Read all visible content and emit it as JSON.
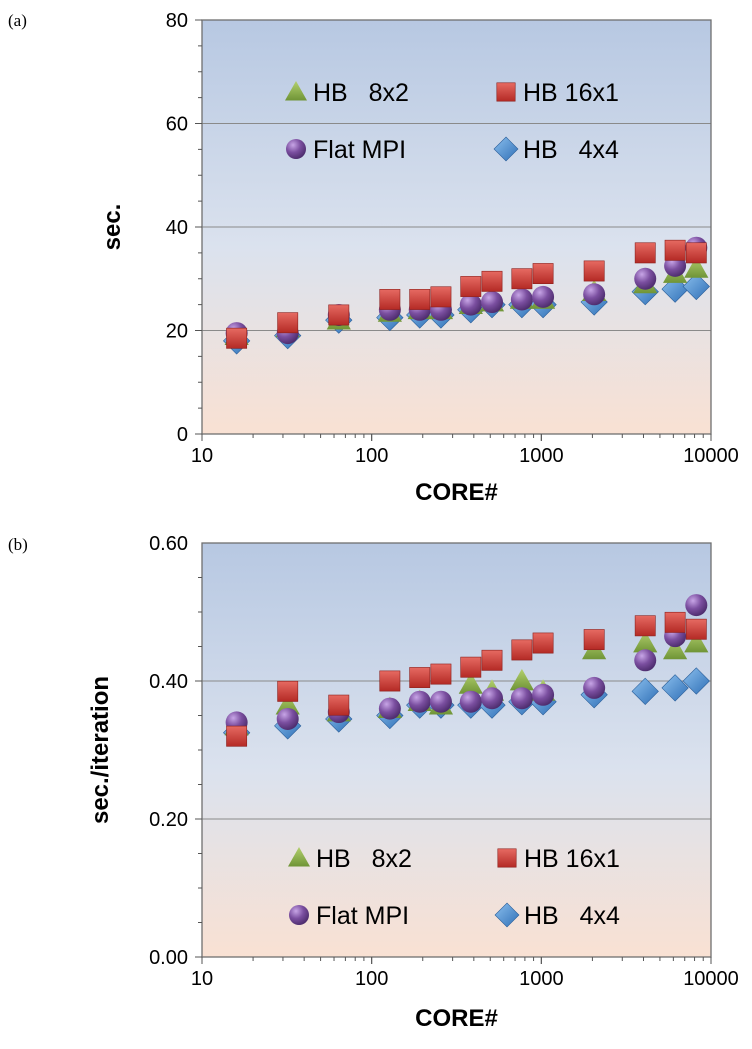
{
  "chart_data": [
    {
      "panel_label": "(a)",
      "type": "scatter",
      "xlabel": "CORE#",
      "ylabel": "sec.",
      "xscale": "log",
      "xlim": [
        10,
        10000
      ],
      "ylim": [
        0,
        80
      ],
      "xticks": [
        10,
        100,
        1000,
        10000
      ],
      "xtick_labels": [
        "10",
        "100",
        "1000",
        "10000"
      ],
      "yticks": [
        0,
        20,
        40,
        60,
        80
      ],
      "ytick_labels": [
        "0",
        "20",
        "40",
        "60",
        "80"
      ],
      "grid": "horizontal",
      "legend_position": "top",
      "series": [
        {
          "name": "HB   8x2",
          "marker": "triangle",
          "color": "#8db04a",
          "x": [
            16,
            32,
            64,
            128,
            192,
            256,
            384,
            512,
            768,
            1024,
            2048,
            4096,
            6144,
            8192
          ],
          "y": [
            19,
            20.5,
            22,
            23.5,
            24,
            24,
            25,
            25.5,
            26,
            26,
            27.5,
            29,
            31,
            32
          ]
        },
        {
          "name": "HB 16x1",
          "marker": "square",
          "color": "#d03a34",
          "x": [
            16,
            32,
            64,
            128,
            192,
            256,
            384,
            512,
            768,
            1024,
            2048,
            4096,
            6144,
            8192
          ],
          "y": [
            18.5,
            21.5,
            23,
            26,
            26,
            26.5,
            28.5,
            29.5,
            30,
            31,
            31.5,
            35,
            35.5,
            35
          ]
        },
        {
          "name": "Flat MPI",
          "marker": "circle",
          "color": "#7a4f9e",
          "x": [
            16,
            32,
            64,
            128,
            192,
            256,
            384,
            512,
            768,
            1024,
            2048,
            4096,
            6144,
            8192
          ],
          "y": [
            19.5,
            19.5,
            23,
            24,
            24,
            24,
            25,
            25.5,
            26,
            26.5,
            27,
            30,
            32.5,
            36
          ]
        },
        {
          "name": "HB   4x4",
          "marker": "diamond",
          "color": "#3f86cc",
          "x": [
            16,
            32,
            64,
            128,
            192,
            256,
            384,
            512,
            768,
            1024,
            2048,
            4096,
            6144,
            8192
          ],
          "y": [
            18,
            19,
            22,
            22.5,
            23,
            23,
            24,
            25,
            25,
            25,
            25.5,
            27.5,
            28,
            28.5
          ]
        }
      ]
    },
    {
      "panel_label": "(b)",
      "type": "scatter",
      "xlabel": "CORE#",
      "ylabel": "sec./iteration",
      "xscale": "log",
      "xlim": [
        10,
        10000
      ],
      "ylim": [
        0,
        0.6
      ],
      "xticks": [
        10,
        100,
        1000,
        10000
      ],
      "xtick_labels": [
        "10",
        "100",
        "1000",
        "10000"
      ],
      "yticks": [
        0,
        0.2,
        0.4,
        0.6
      ],
      "ytick_labels": [
        "0.00",
        "0.20",
        "0.40",
        "0.60"
      ],
      "grid": "horizontal",
      "legend_position": "bottom",
      "series": [
        {
          "name": "HB   8x2",
          "marker": "triangle",
          "color": "#8db04a",
          "x": [
            16,
            32,
            64,
            128,
            192,
            256,
            384,
            512,
            768,
            1024,
            2048,
            4096,
            6144,
            8192
          ],
          "y": [
            0.335,
            0.365,
            0.355,
            0.36,
            0.37,
            0.365,
            0.395,
            0.385,
            0.4,
            0.385,
            0.445,
            0.455,
            0.445,
            0.455
          ]
        },
        {
          "name": "HB 16x1",
          "marker": "square",
          "color": "#d03a34",
          "x": [
            16,
            32,
            64,
            128,
            192,
            256,
            384,
            512,
            768,
            1024,
            2048,
            4096,
            6144,
            8192
          ],
          "y": [
            0.32,
            0.385,
            0.365,
            0.4,
            0.405,
            0.41,
            0.42,
            0.43,
            0.445,
            0.455,
            0.46,
            0.48,
            0.485,
            0.475
          ]
        },
        {
          "name": "Flat MPI",
          "marker": "circle",
          "color": "#7a4f9e",
          "x": [
            16,
            32,
            64,
            128,
            192,
            256,
            384,
            512,
            768,
            1024,
            2048,
            4096,
            6144,
            8192
          ],
          "y": [
            0.34,
            0.345,
            0.355,
            0.36,
            0.37,
            0.37,
            0.37,
            0.375,
            0.375,
            0.38,
            0.39,
            0.43,
            0.465,
            0.51
          ]
        },
        {
          "name": "HB   4x4",
          "marker": "diamond",
          "color": "#3f86cc",
          "x": [
            16,
            32,
            64,
            128,
            192,
            256,
            384,
            512,
            768,
            1024,
            2048,
            4096,
            6144,
            8192
          ],
          "y": [
            0.325,
            0.335,
            0.345,
            0.35,
            0.365,
            0.365,
            0.365,
            0.365,
            0.37,
            0.37,
            0.38,
            0.385,
            0.39,
            0.4
          ]
        }
      ]
    }
  ]
}
